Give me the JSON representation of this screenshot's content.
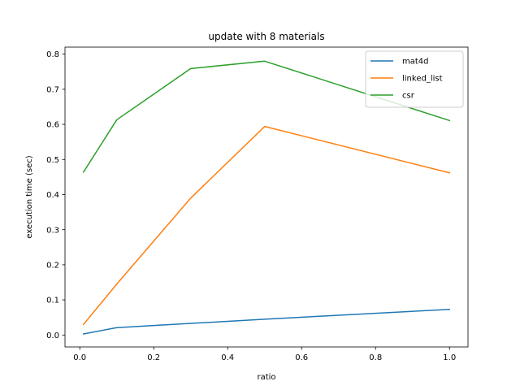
{
  "chart_data": {
    "type": "line",
    "title": "update with 8 materials",
    "xlabel": "ratio",
    "ylabel": "execution time (sec)",
    "xlim": [
      -0.04,
      1.05
    ],
    "ylim": [
      -0.034,
      0.82
    ],
    "xticks": [
      0.0,
      0.2,
      0.4,
      0.6,
      0.8,
      1.0
    ],
    "xtick_labels": [
      "0.0",
      "0.2",
      "0.4",
      "0.6",
      "0.8",
      "1.0"
    ],
    "yticks": [
      0.0,
      0.1,
      0.2,
      0.3,
      0.4,
      0.5,
      0.6,
      0.7,
      0.8
    ],
    "ytick_labels": [
      "0.0",
      "0.1",
      "0.2",
      "0.3",
      "0.4",
      "0.5",
      "0.6",
      "0.7",
      "0.8"
    ],
    "grid": false,
    "legend_position": "top-right",
    "series": [
      {
        "name": "mat4d",
        "color": "#1f77b4",
        "x": [
          0.01,
          0.1,
          0.3,
          0.5,
          1.0
        ],
        "values": [
          0.003,
          0.021,
          0.033,
          0.045,
          0.073
        ]
      },
      {
        "name": "linked_list",
        "color": "#ff7f0e",
        "x": [
          0.01,
          0.1,
          0.3,
          0.5,
          1.0
        ],
        "values": [
          0.03,
          0.145,
          0.39,
          0.594,
          0.462
        ]
      },
      {
        "name": "csr",
        "color": "#2ca02c",
        "x": [
          0.01,
          0.1,
          0.3,
          0.5,
          1.0
        ],
        "values": [
          0.464,
          0.613,
          0.759,
          0.78,
          0.611
        ]
      }
    ]
  }
}
